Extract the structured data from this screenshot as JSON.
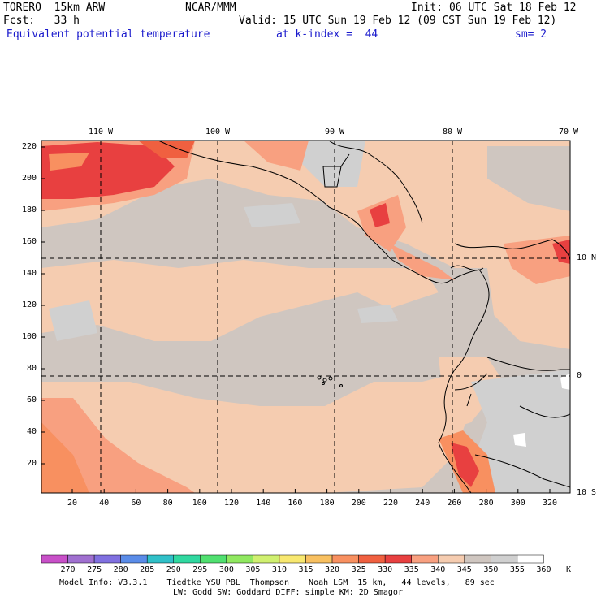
{
  "header": {
    "model": "TORERO  15km ARW",
    "org": "NCAR/MMM",
    "init": "Init: 06 UTC Sat 18 Feb 12",
    "fcst": "Fcst:   33 h",
    "valid": "Valid: 15 UTC Sun 19 Feb 12 (09 CST Sun 19 Feb 12)",
    "field": "Equivalent potential temperature",
    "level": "at k-index =  44",
    "smooth": "sm= 2"
  },
  "axes": {
    "top_lon": [
      "110 W",
      "100 W",
      "90 W",
      "80 W",
      "70 W"
    ],
    "right_lat": [
      "10 N",
      "0",
      "10 S"
    ],
    "left_ticks": [
      "220",
      "200",
      "180",
      "160",
      "140",
      "120",
      "100",
      "80",
      "60",
      "40",
      "20"
    ],
    "bottom_ticks": [
      "20",
      "40",
      "60",
      "80",
      "100",
      "120",
      "140",
      "160",
      "180",
      "200",
      "220",
      "240",
      "260",
      "280",
      "300",
      "320"
    ]
  },
  "colorbar": {
    "labels": [
      "270",
      "275",
      "280",
      "285",
      "290",
      "295",
      "300",
      "305",
      "310",
      "315",
      "320",
      "325",
      "330",
      "335",
      "340",
      "345",
      "350",
      "355",
      "360"
    ],
    "unit": "K",
    "colors": [
      "#c850c8",
      "#a070d0",
      "#8070e0",
      "#5a8ce8",
      "#30c0c8",
      "#30d8a0",
      "#50e070",
      "#90e860",
      "#d0f070",
      "#f8e870",
      "#f8c060",
      "#f89060",
      "#f06040",
      "#e84040",
      "#f8a080",
      "#f5ccb0",
      "#cfc6c0",
      "#d0d0d0",
      "#ffffff"
    ]
  },
  "footer": {
    "line1": "Model Info: V3.3.1    Tiedtke YSU PBL  Thompson    Noah LSM  15 km,   44 levels,   89 sec",
    "line2": "LW: Godd SW: Goddard DIFF: simple KM: 2D Smagor"
  }
}
